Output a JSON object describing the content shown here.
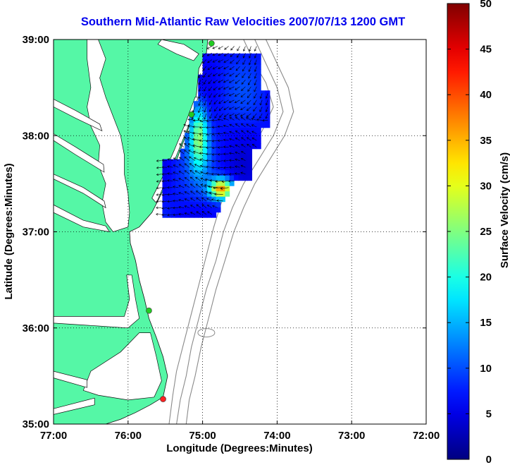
{
  "title": "Southern Mid-Atlantic Raw Velocities 2007/07/13 1200 GMT",
  "map": {
    "xlabel": "Longitude (Degrees:Minutes)",
    "ylabel": "Latitude (Degrees:Minutes)",
    "lon_range": [
      -77.0,
      -72.0
    ],
    "lat_range": [
      35.0,
      39.0
    ],
    "x_ticks": [
      "77:00",
      "76:00",
      "75:00",
      "74:00",
      "73:00",
      "72:00"
    ],
    "y_ticks": [
      "35:00",
      "36:00",
      "37:00",
      "38:00",
      "39:00"
    ],
    "gridlines": "dotted",
    "land_color": "#55f7a6",
    "bathymetry_color": "#8a8a8a",
    "stations": [
      {
        "lon": -74.88,
        "lat": 38.96,
        "color": "#22cc22"
      },
      {
        "lon": -75.15,
        "lat": 38.22,
        "color": "#22cc22"
      },
      {
        "lon": -75.72,
        "lat": 36.18,
        "color": "#22cc22"
      },
      {
        "lon": -75.53,
        "lat": 35.26,
        "color": "#ff2222"
      }
    ]
  },
  "colorbar": {
    "label": "Surface Velocity (cm/s)",
    "min": 0,
    "max": 50,
    "ticks": [
      "0",
      "5",
      "10",
      "15",
      "20",
      "25",
      "30",
      "35",
      "40",
      "45",
      "50"
    ],
    "colormap": "jet"
  }
}
